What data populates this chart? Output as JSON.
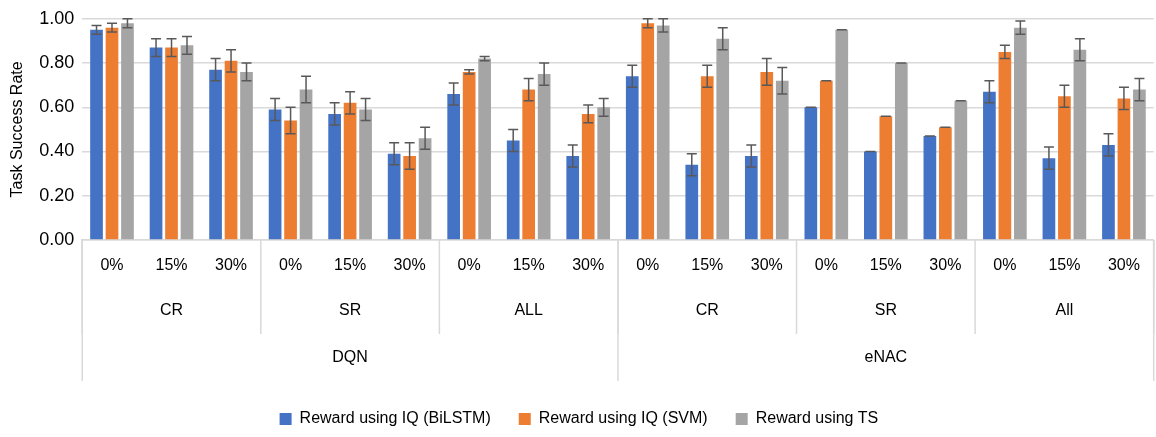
{
  "chart_data": {
    "type": "bar",
    "ylabel": "Task Success Rate",
    "categories": [
      "0%",
      "15%",
      "30%",
      "0%",
      "15%",
      "30%",
      "0%",
      "15%",
      "30%",
      "0%",
      "15%",
      "30%",
      "0%",
      "15%",
      "30%",
      "0%",
      "15%",
      "30%"
    ],
    "annotations": [
      "CR",
      "SR",
      "ALL",
      "CR",
      "SR",
      "All",
      "DQN",
      "eNAC"
    ],
    "series": [
      {
        "name": "Reward using IQ (BiLSTM)",
        "color": "#4472c4",
        "values": [
          0.95,
          0.87,
          0.77,
          0.59,
          0.57,
          0.39,
          0.66,
          0.45,
          0.38,
          0.74,
          0.34,
          0.38,
          0.6,
          0.4,
          0.47,
          0.67,
          0.37,
          0.43
        ],
        "errors": [
          0.02,
          0.04,
          0.05,
          0.05,
          0.05,
          0.05,
          0.05,
          0.05,
          0.05,
          0.05,
          0.05,
          0.05,
          0,
          0,
          0,
          0.05,
          0.05,
          0.05
        ]
      },
      {
        "name": "Reward using IQ (SVM)",
        "color": "#ed7d31",
        "values": [
          0.96,
          0.87,
          0.81,
          0.54,
          0.62,
          0.38,
          0.76,
          0.68,
          0.57,
          0.98,
          0.74,
          0.76,
          0.72,
          0.56,
          0.51,
          0.85,
          0.65,
          0.64
        ],
        "errors": [
          0.02,
          0.04,
          0.05,
          0.06,
          0.05,
          0.06,
          0.01,
          0.05,
          0.04,
          0.02,
          0.05,
          0.06,
          0,
          0,
          0,
          0.03,
          0.05,
          0.05
        ]
      },
      {
        "name": "Reward using TS",
        "color": "#a5a5a5",
        "values": [
          0.98,
          0.88,
          0.76,
          0.68,
          0.59,
          0.46,
          0.82,
          0.75,
          0.6,
          0.97,
          0.91,
          0.72,
          0.95,
          0.8,
          0.63,
          0.96,
          0.86,
          0.68
        ],
        "errors": [
          0.02,
          0.04,
          0.04,
          0.06,
          0.05,
          0.05,
          0.01,
          0.05,
          0.04,
          0.03,
          0.05,
          0.06,
          0,
          0,
          0,
          0.03,
          0.05,
          0.05
        ]
      }
    ],
    "ylim": [
      0,
      1
    ],
    "yticks": [
      {
        "value": 0,
        "label": "0.00"
      },
      {
        "value": 0.2,
        "label": "0.20"
      },
      {
        "value": 0.4,
        "label": "0.40"
      },
      {
        "value": 0.6,
        "label": "0.60"
      },
      {
        "value": 0.8,
        "label": "0.80"
      },
      {
        "value": 1,
        "label": "1.00"
      }
    ],
    "grid": "y",
    "legend": "bottom"
  }
}
